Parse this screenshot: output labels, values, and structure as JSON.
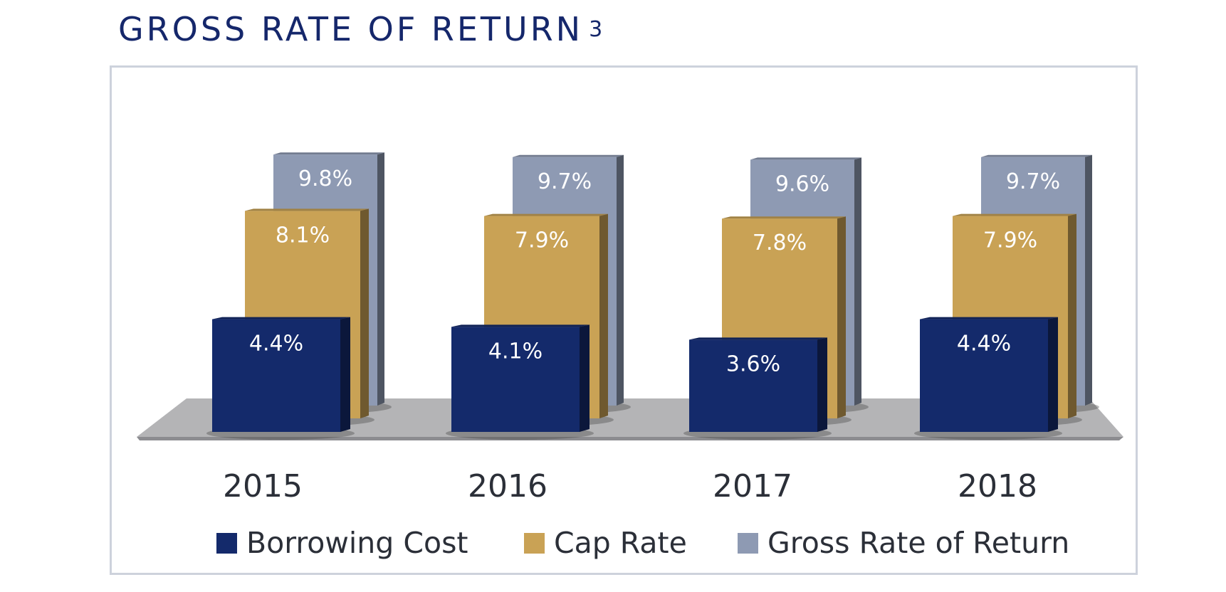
{
  "title": "GROSS RATE OF RETURN",
  "title_footnote": "3",
  "chart_data": {
    "type": "bar",
    "categories": [
      "2015",
      "2016",
      "2017",
      "2018"
    ],
    "series": [
      {
        "name": "Borrowing Cost",
        "values": [
          4.4,
          4.1,
          3.6,
          4.4
        ],
        "labels": [
          "4.4%",
          "4.1%",
          "3.6%",
          "4.4%"
        ],
        "color": "#142a6b"
      },
      {
        "name": "Cap Rate",
        "values": [
          8.1,
          7.9,
          7.8,
          7.9
        ],
        "labels": [
          "8.1%",
          "7.9%",
          "7.8%",
          "7.9%"
        ],
        "color": "#c9a255"
      },
      {
        "name": "Gross Rate of Return",
        "values": [
          9.8,
          9.7,
          9.6,
          9.7
        ],
        "labels": [
          "9.8%",
          "9.7%",
          "9.6%",
          "9.7%"
        ],
        "color": "#8e9ab3"
      }
    ],
    "legend_position": "bottom",
    "grid": false,
    "style": "3d-perspective"
  }
}
